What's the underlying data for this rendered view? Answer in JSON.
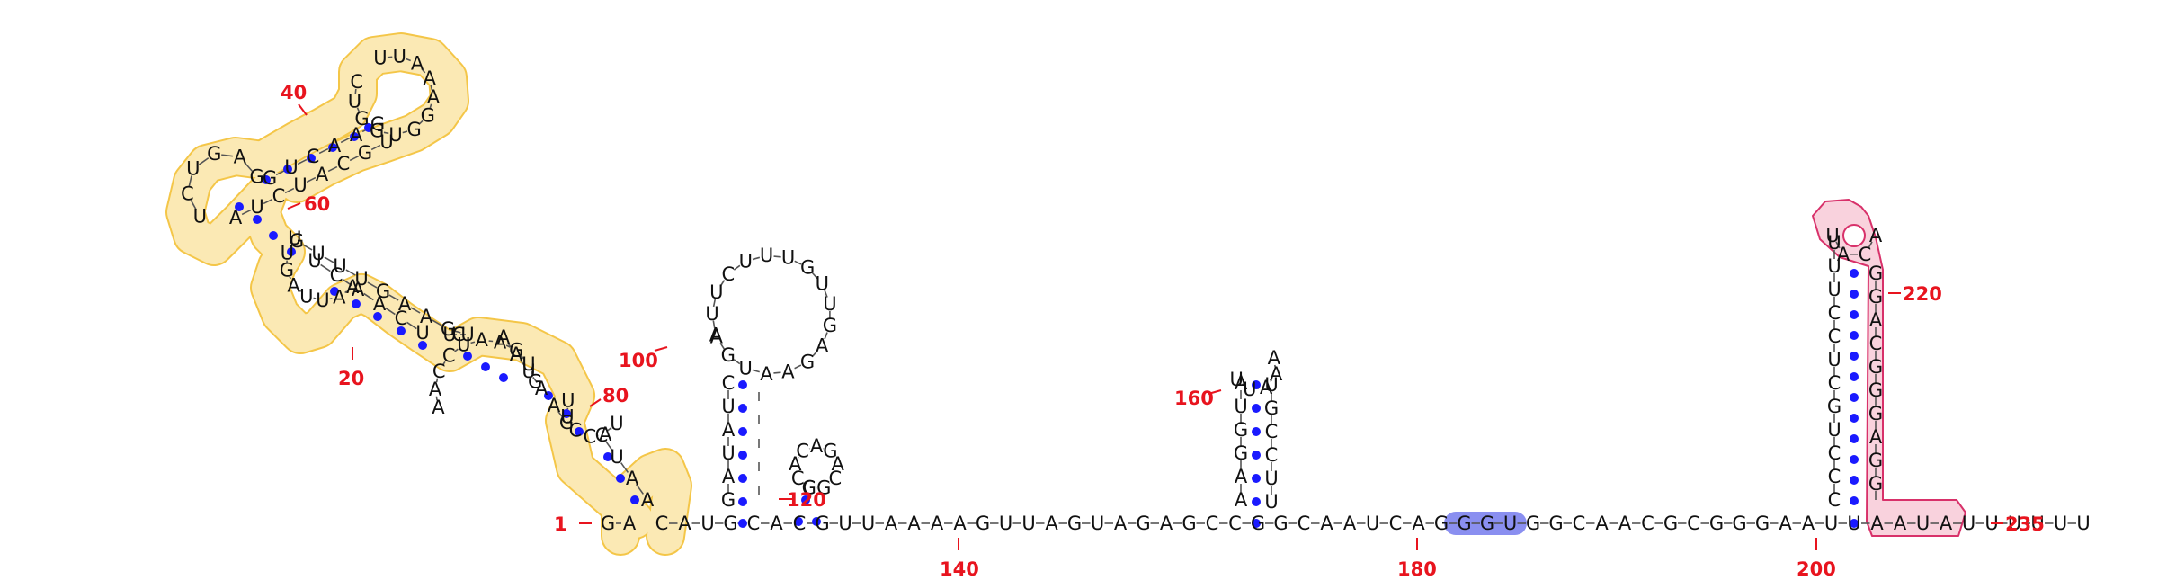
{
  "colors": {
    "text": "#111111",
    "backbone": "#555555",
    "pair": "#1a1aff",
    "number": "#e8141e",
    "highlight_yellow_fill": "#fbe9b4",
    "highlight_yellow_stroke": "#f3c33e",
    "highlight_pink_fill": "#f9d2dd",
    "highlight_pink_stroke": "#d8316a",
    "highlight_blue_fill": "#8a8ff0"
  },
  "sequence": {
    "main_line": [
      "G",
      "A",
      "C",
      "A",
      "U",
      "G",
      "C",
      "A",
      "C",
      "G",
      "U",
      "U",
      "A",
      "A",
      "A",
      "A",
      "G",
      "U",
      "U",
      "A",
      "G",
      "U",
      "A",
      "G",
      "A",
      "G",
      "C",
      "C",
      "G",
      "G",
      "C",
      "A",
      "A",
      "U",
      "C",
      "A",
      "G",
      "G",
      "G",
      "U",
      "G",
      "G",
      "C",
      "A",
      "A",
      "C",
      "G",
      "C",
      "G",
      "G",
      "G",
      "A",
      "A",
      "U",
      "U",
      "A",
      "A",
      "U",
      "A",
      "U",
      "U",
      "U",
      "U",
      "U",
      "U"
    ],
    "upper_arm": [
      "G",
      "U",
      "C",
      "A",
      "A",
      "G",
      "C",
      "U",
      "G",
      "G",
      "U",
      "G",
      "G",
      "A",
      "A",
      "A",
      "U",
      "U",
      "U",
      "G",
      "C",
      "A",
      "U",
      "C",
      "U",
      "A",
      "G",
      "A",
      "G",
      "U",
      "C",
      "U"
    ],
    "middle_arm": [
      "U",
      "C",
      "A",
      "A",
      "C",
      "U",
      "A",
      "A",
      "U",
      "U",
      "A",
      "G",
      "U",
      "U",
      "G",
      "U",
      "U",
      "U",
      "G",
      "A",
      "A",
      "G",
      "U",
      "C",
      "U"
    ],
    "lower_arm": [
      "A",
      "A",
      "U",
      "C",
      "U",
      "A",
      "C",
      "C",
      "U",
      "U",
      "G",
      "A",
      "A",
      "U",
      "A",
      "A",
      "G",
      "U",
      "G",
      "A",
      "A",
      "U",
      "C",
      "C",
      "A",
      "A"
    ],
    "stem_100": [
      "G",
      "A",
      "U",
      "A",
      "U",
      "C",
      "A",
      "G",
      "U",
      "A",
      "A",
      "G",
      "A",
      "G",
      "U",
      "U",
      "G",
      "U",
      "U",
      "U",
      "C",
      "U",
      "U",
      "A"
    ],
    "hairpin_120": [
      "G",
      "G",
      "C",
      "A",
      "G",
      "A",
      "C",
      "A",
      "C",
      "C"
    ],
    "hairpin_160": [
      "A",
      "A",
      "G",
      "G",
      "U",
      "A",
      "U",
      "U",
      "A",
      "A",
      "A",
      "U",
      "G",
      "C",
      "C",
      "U",
      "U"
    ],
    "hairpin_220": [
      "C",
      "C",
      "C",
      "U",
      "G",
      "C",
      "U",
      "C",
      "C",
      "U",
      "U",
      "U",
      "U",
      "A",
      "C",
      "A",
      "G",
      "G",
      "A",
      "C",
      "G",
      "G",
      "G",
      "A",
      "G",
      "G"
    ]
  },
  "numbering": {
    "n1": "1",
    "n20": "20",
    "n40": "40",
    "n60": "60",
    "n80": "80",
    "n100": "100",
    "n120": "120",
    "n140": "140",
    "n160": "160",
    "n180": "180",
    "n200": "200",
    "n220": "220",
    "n235": "235"
  }
}
